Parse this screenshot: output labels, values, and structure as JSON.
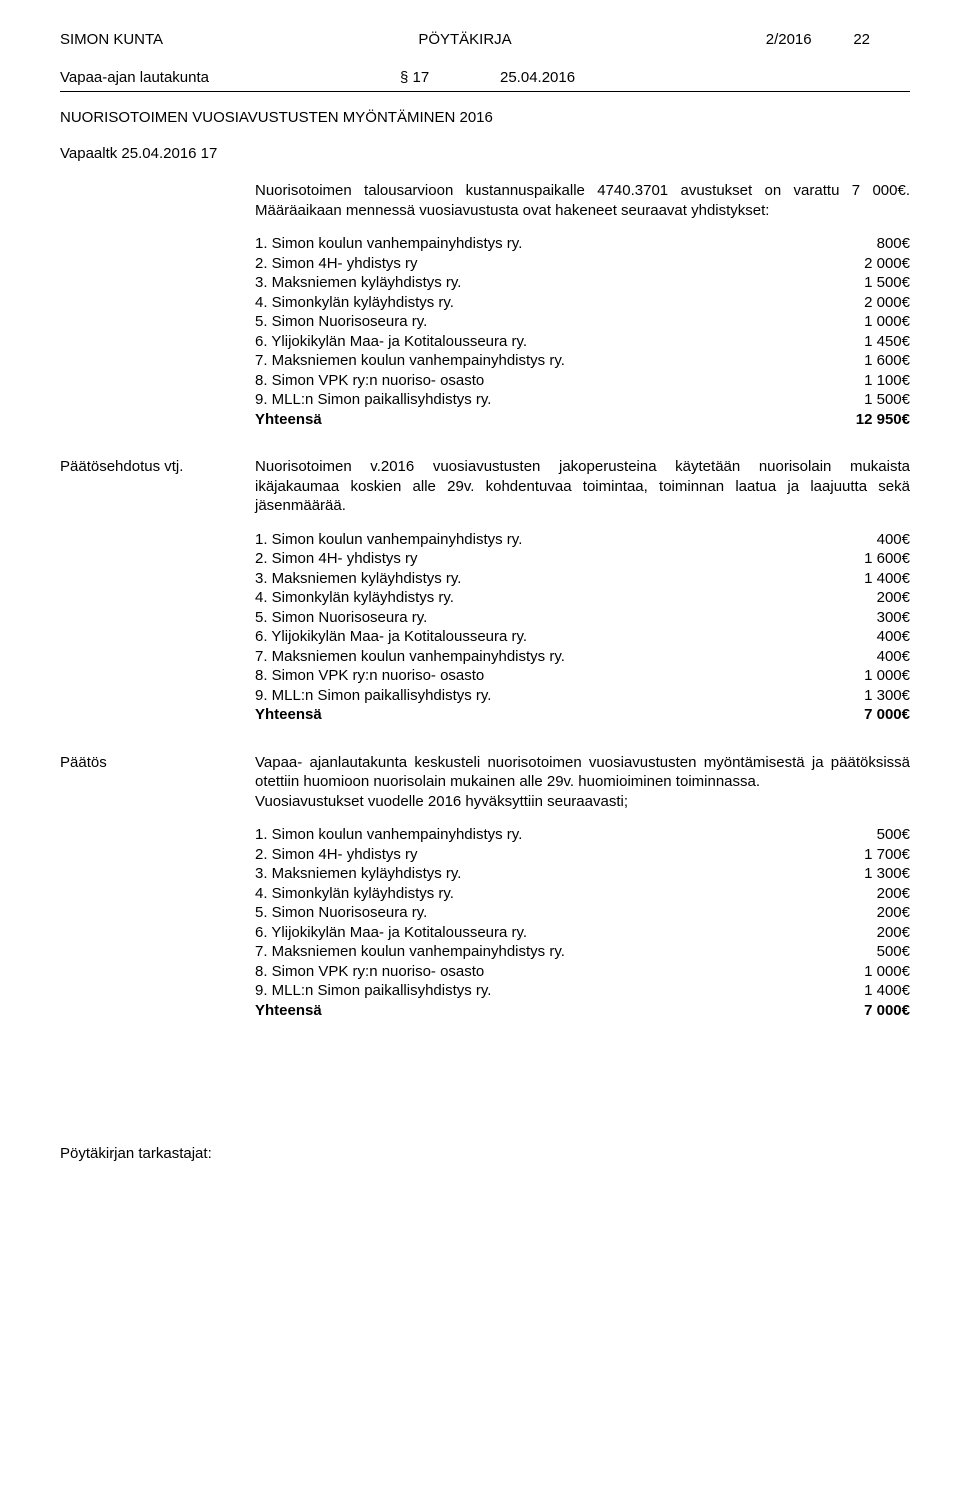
{
  "header": {
    "org": "SIMON KUNTA",
    "docType": "PÖYTÄKIRJA",
    "docNum": "2/2016",
    "pageNum": "22"
  },
  "committee": {
    "name": "Vapaa-ajan lautakunta",
    "section": "§ 17",
    "date": "25.04.2016"
  },
  "title": "NUORISOTOIMEN VUOSIAVUSTUSTEN MYÖNTÄMINEN 2016",
  "ref": "Vapaaltk 25.04.2016 17",
  "intro": "Nuorisotoimen talousarvioon kustannuspaikalle 4740.3701 avustukset on varattu 7 000€. Määräaikaan mennessä vuosiavustusta ovat hakeneet seuraavat yhdistykset:",
  "applicants": {
    "rows": [
      {
        "label": "1. Simon koulun vanhempainyhdistys ry.",
        "amt": "800€"
      },
      {
        "label": "2. Simon 4H- yhdistys ry",
        "amt": "2 000€"
      },
      {
        "label": "3. Maksniemen kyläyhdistys ry.",
        "amt": "1 500€"
      },
      {
        "label": "4. Simonkylän kyläyhdistys ry.",
        "amt": "2 000€"
      },
      {
        "label": "5. Simon Nuorisoseura ry.",
        "amt": "1 000€"
      },
      {
        "label": "6. Ylijokikylän Maa- ja Kotitalousseura ry.",
        "amt": "1 450€"
      },
      {
        "label": "7. Maksniemen koulun vanhempainyhdistys ry.",
        "amt": "1 600€"
      },
      {
        "label": "8. Simon VPK ry:n nuoriso- osasto",
        "amt": "1 100€"
      },
      {
        "label": "9. MLL:n Simon paikallisyhdistys ry.",
        "amt": "1 500€"
      }
    ],
    "totalLabel": "Yhteensä",
    "totalAmt": "12 950€"
  },
  "proposal": {
    "heading": "Päätösehdotus vtj.",
    "text": "Nuorisotoimen v.2016 vuosiavustusten jakoperusteina käytetään nuorisolain mukaista ikäjakaumaa koskien alle 29v. kohdentuvaa toimintaa, toiminnan laatua ja laajuutta sekä jäsenmäärää.",
    "rows": [
      {
        "label": "1. Simon koulun vanhempainyhdistys ry.",
        "amt": "400€"
      },
      {
        "label": "2. Simon 4H- yhdistys ry",
        "amt": "1 600€"
      },
      {
        "label": "3. Maksniemen kyläyhdistys ry.",
        "amt": "1 400€"
      },
      {
        "label": "4. Simonkylän kyläyhdistys ry.",
        "amt": "200€"
      },
      {
        "label": "5. Simon Nuorisoseura ry.",
        "amt": "300€"
      },
      {
        "label": "6. Ylijokikylän Maa- ja Kotitalousseura ry.",
        "amt": "400€"
      },
      {
        "label": "7. Maksniemen koulun vanhempainyhdistys ry.",
        "amt": "400€"
      },
      {
        "label": "8. Simon VPK ry:n nuoriso- osasto",
        "amt": "1 000€"
      },
      {
        "label": "9. MLL:n Simon paikallisyhdistys ry.",
        "amt": "1 300€"
      }
    ],
    "totalLabel": "Yhteensä",
    "totalAmt": "7 000€"
  },
  "decision": {
    "heading": "Päätös",
    "text1": "Vapaa- ajanlautakunta keskusteli nuorisotoimen vuosiavustusten myöntämisestä ja päätöksissä otettiin huomioon nuorisolain mukainen alle 29v. huomioiminen toiminnassa.",
    "text2": "Vuosiavustukset vuodelle 2016 hyväksyttiin seuraavasti;",
    "rows": [
      {
        "label": "1. Simon koulun vanhempainyhdistys ry.",
        "amt": "500€"
      },
      {
        "label": "2. Simon 4H- yhdistys ry",
        "amt": "1 700€"
      },
      {
        "label": "3. Maksniemen kyläyhdistys ry.",
        "amt": "1 300€"
      },
      {
        "label": "4. Simonkylän kyläyhdistys ry.",
        "amt": "200€"
      },
      {
        "label": "5. Simon Nuorisoseura ry.",
        "amt": "200€"
      },
      {
        "label": "6. Ylijokikylän Maa- ja Kotitalousseura ry.",
        "amt": "200€"
      },
      {
        "label": "7. Maksniemen koulun vanhempainyhdistys ry.",
        "amt": "500€"
      },
      {
        "label": "8. Simon VPK ry:n nuoriso- osasto",
        "amt": "1 000€"
      },
      {
        "label": "9. MLL:n Simon paikallisyhdistys ry.",
        "amt": "1 400€"
      }
    ],
    "totalLabel": "Yhteensä",
    "totalAmt": "7 000€"
  },
  "footer": "Pöytäkirjan tarkastajat:"
}
